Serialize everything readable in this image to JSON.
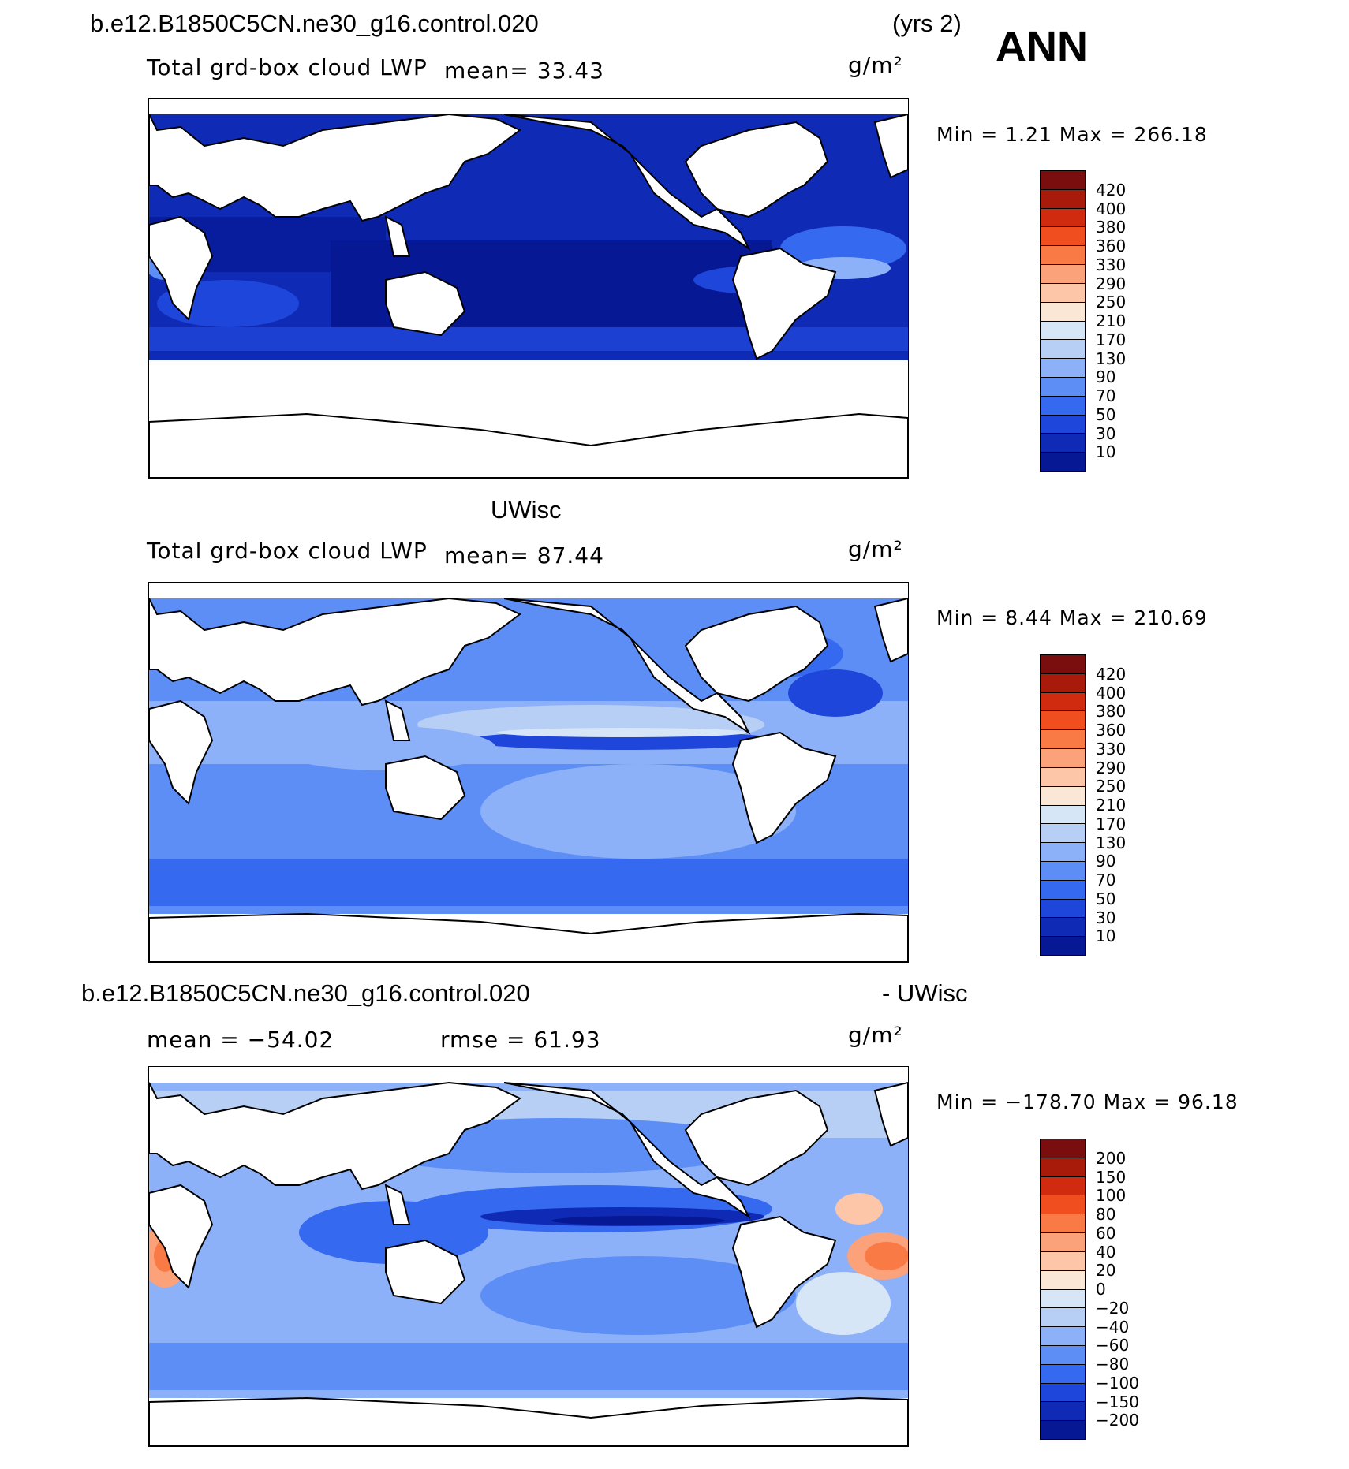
{
  "header": {
    "case_title": "b.e12.B1850C5CN.ne30_g16.control.020",
    "years": "(yrs 2)",
    "season": "ANN"
  },
  "panel1": {
    "variable": "Total grd-box cloud LWP",
    "mean_text": "mean=   33.43",
    "units": "g/m²",
    "minmax": "Min  =    1.21  Max  =  266.18"
  },
  "panel2": {
    "source_title": "UWisc",
    "variable": "Total grd-box cloud LWP",
    "mean_text": "mean=   87.44",
    "units": "g/m²",
    "minmax": "Min  =    8.44  Max  =  210.69"
  },
  "panel3": {
    "diff_title_left": "b.e12.B1850C5CN.ne30_g16.control.020",
    "diff_title_right": "- UWisc",
    "mean_text": "mean  =  −54.02",
    "rmse_text": "rmse  =   61.93",
    "units": "g/m²",
    "minmax": "Min  =  −178.70  Max  =   96.18"
  },
  "colorbar_abs": {
    "labels": [
      "420",
      "400",
      "380",
      "360",
      "330",
      "290",
      "250",
      "210",
      "170",
      "130",
      "90",
      "70",
      "50",
      "30",
      "10"
    ],
    "colors": [
      "#7a0d0d",
      "#a81a0a",
      "#d12b0f",
      "#f04e1e",
      "#f97a45",
      "#fba27a",
      "#fdc6a9",
      "#fbe7d6",
      "#d6e6f7",
      "#b7cff5",
      "#8db1f8",
      "#5c8ef6",
      "#3569f0",
      "#1f46da",
      "#0f2bb6",
      "#061893"
    ]
  },
  "colorbar_diff": {
    "labels": [
      "200",
      "150",
      "100",
      "80",
      "60",
      "40",
      "20",
      "0",
      "−20",
      "−40",
      "−60",
      "−80",
      "−100",
      "−150",
      "−200"
    ],
    "colors": [
      "#7a0d0d",
      "#a81a0a",
      "#d12b0f",
      "#f04e1e",
      "#f97a45",
      "#fba27a",
      "#fdc6a9",
      "#fbe7d6",
      "#d6e6f7",
      "#b7cff5",
      "#8db1f8",
      "#5c8ef6",
      "#3569f0",
      "#1f46da",
      "#0f2bb6",
      "#061893"
    ]
  }
}
